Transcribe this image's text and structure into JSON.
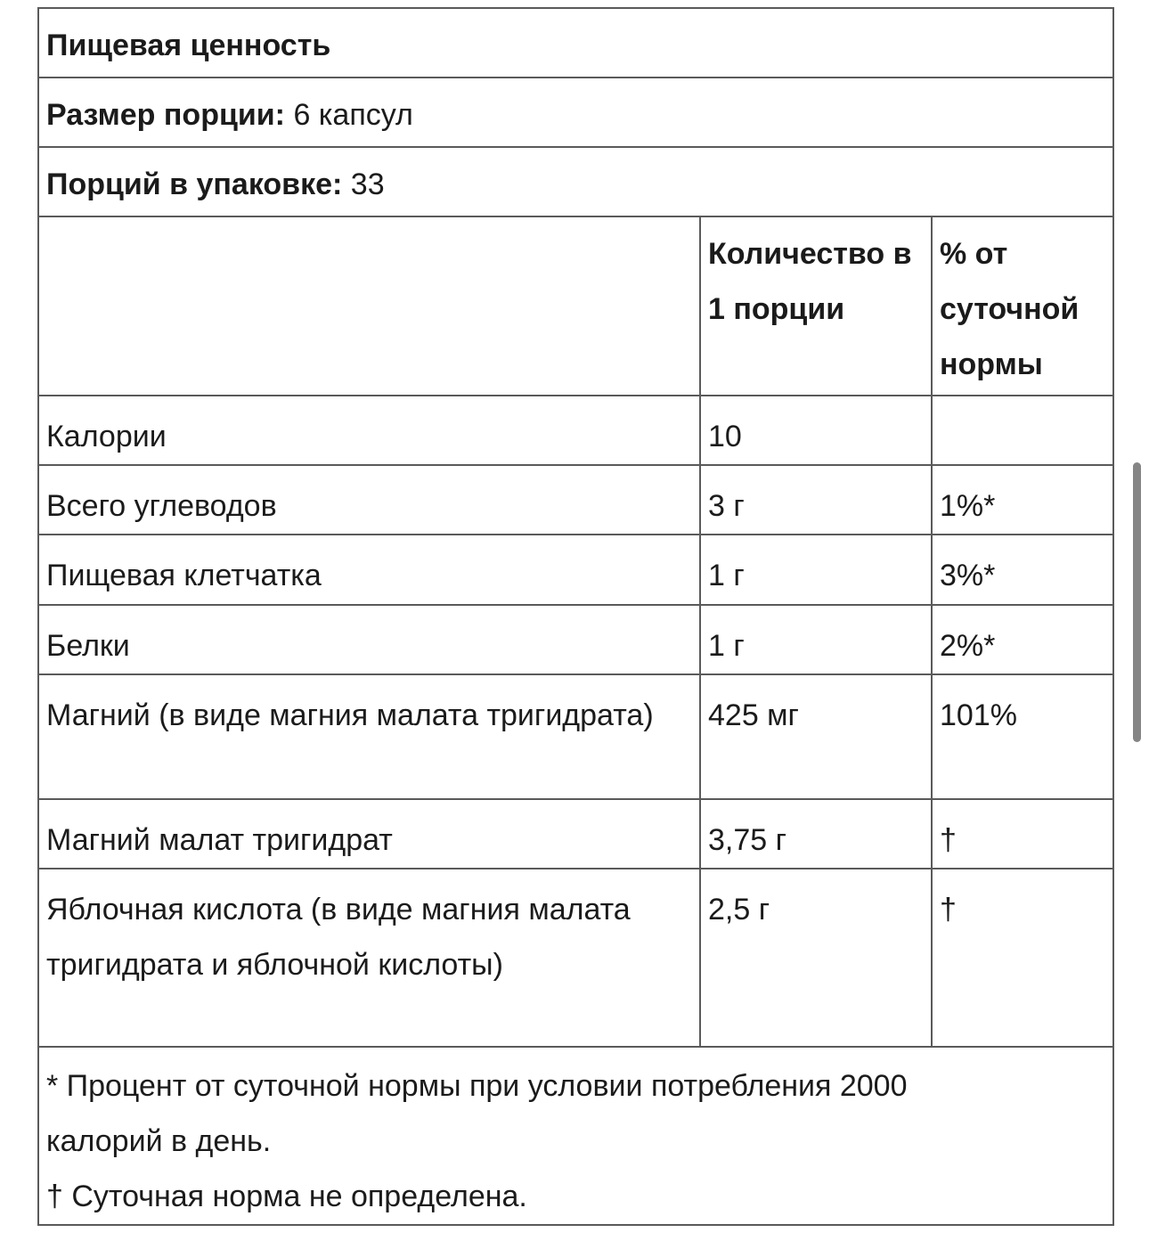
{
  "title": "Пищевая ценность",
  "serving_size": {
    "label": "Размер порции:",
    "value": "6 капсул"
  },
  "servings_per_container": {
    "label": "Порций в упаковке:",
    "value": "33"
  },
  "columns": {
    "name": "",
    "amount": "Количество в 1 порции",
    "dv": "% от суточной нормы"
  },
  "rows": [
    {
      "name": "Калории",
      "amount": "10",
      "dv": ""
    },
    {
      "name": "Всего углеводов",
      "amount": "3 г",
      "dv": "1%*"
    },
    {
      "name": "Пищевая клетчатка",
      "amount": "1 г",
      "dv": "3%*"
    },
    {
      "name": "Белки",
      "amount": "1 г",
      "dv": "2%*"
    },
    {
      "name": "Магний (в виде магния малата тригидрата)",
      "amount": "425 мг",
      "dv": "101%"
    },
    {
      "name": "Магний малат тригидрат",
      "amount": "3,75 г",
      "dv": "†"
    },
    {
      "name": "Яблочная кислота (в виде магния малата тригидрата и яблочной кислоты)",
      "amount": "2,5 г",
      "dv": "†"
    }
  ],
  "footnotes": [
    "* Процент от суточной нормы при условии потребления 2000 калорий в день.",
    "† Суточная норма не определена."
  ]
}
